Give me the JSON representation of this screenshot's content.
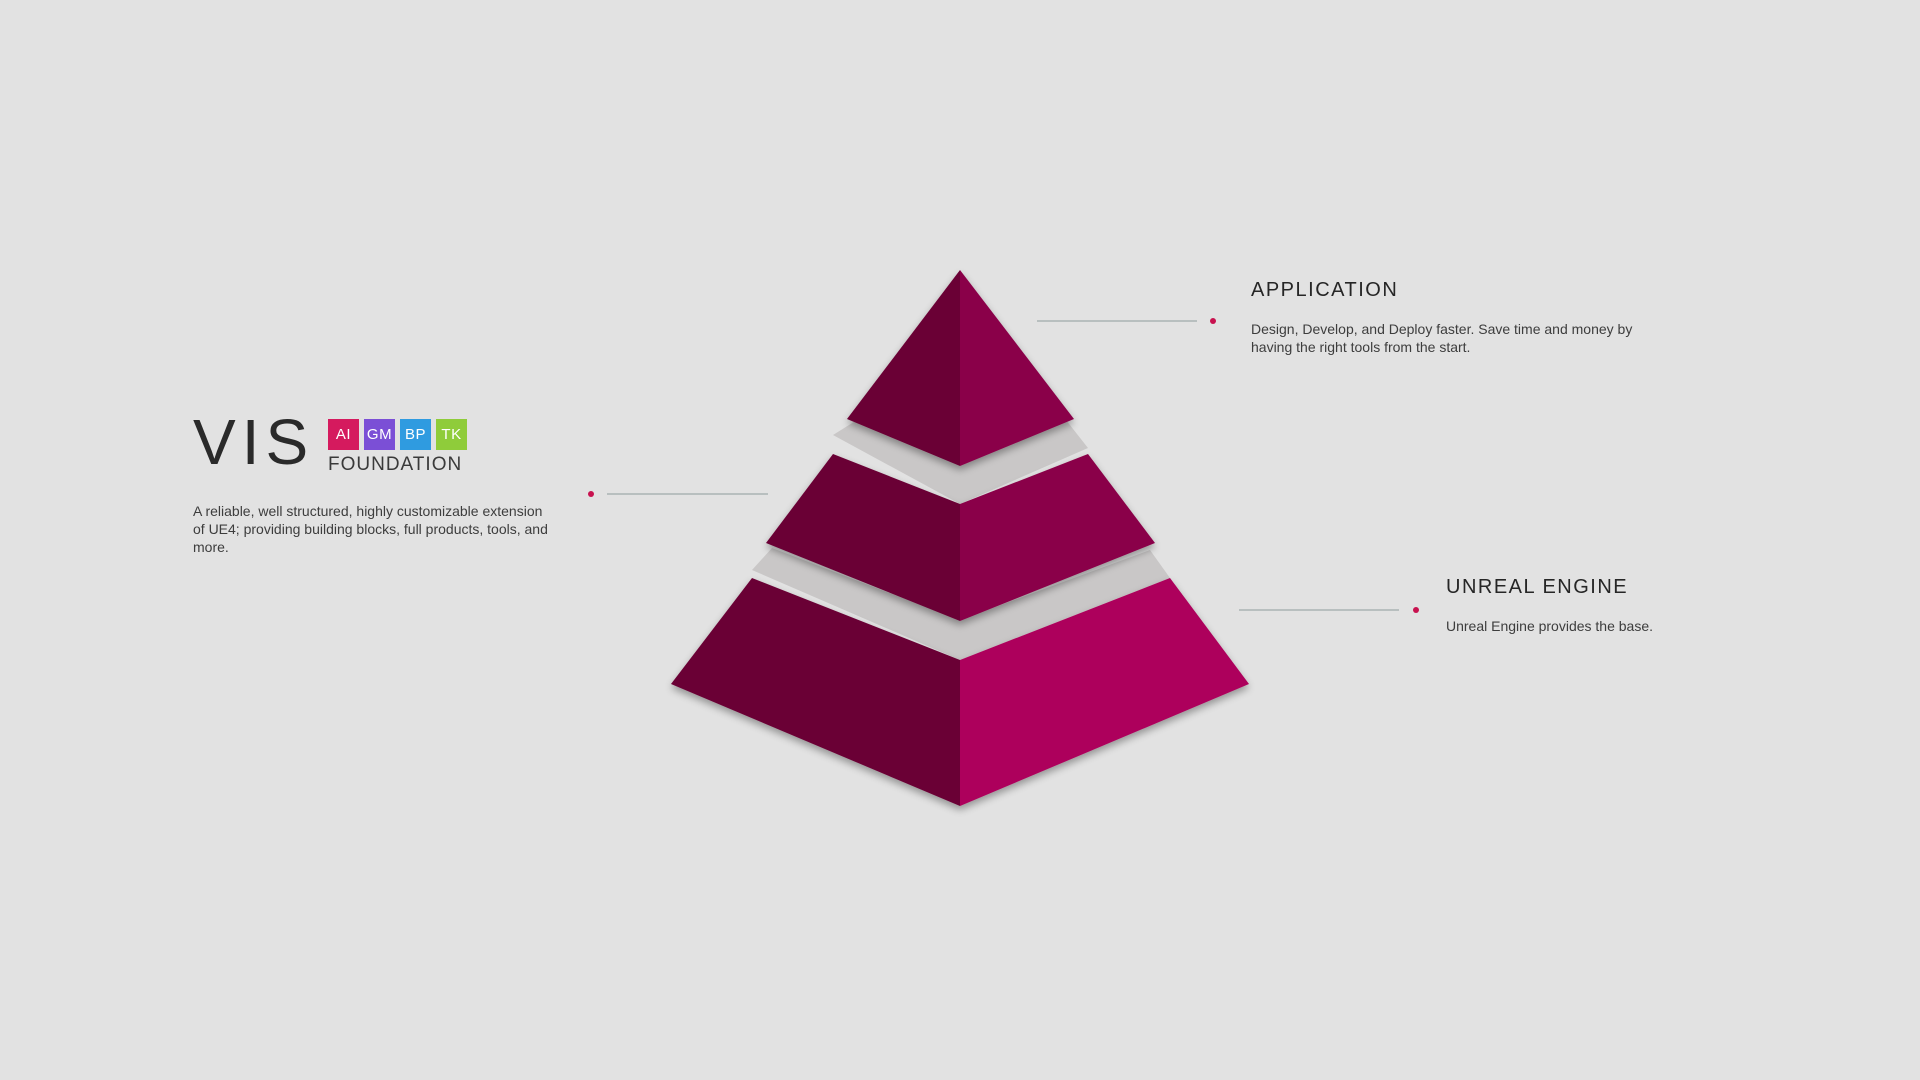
{
  "logo": {
    "word": "VIS",
    "tiles": [
      {
        "label": "AI",
        "color": "#d51a5e"
      },
      {
        "label": "GM",
        "color": "#7b4fd6"
      },
      {
        "label": "BP",
        "color": "#2f9be0"
      },
      {
        "label": "TK",
        "color": "#8fcc3a"
      }
    ],
    "subtitle": "FOUNDATION"
  },
  "foundation": {
    "description": "A reliable, well structured, highly customizable extension of UE4; providing building blocks, full products, tools, and more."
  },
  "application": {
    "title": "APPLICATION",
    "description": "Design, Develop, and Deploy faster. Save time and money by having the right tools from the start."
  },
  "unreal_engine": {
    "title": "UNREAL ENGINE",
    "description": "Unreal Engine provides the base."
  },
  "colors": {
    "background": "#e2e2e2",
    "tier_dark": "#6a0036",
    "tier_mid": "#8a0049",
    "tier_bright": "#ad005b",
    "gap_surface": "#c9c7c7",
    "connector_line": "#a9b3b3",
    "connector_dot": "#c8124f"
  }
}
